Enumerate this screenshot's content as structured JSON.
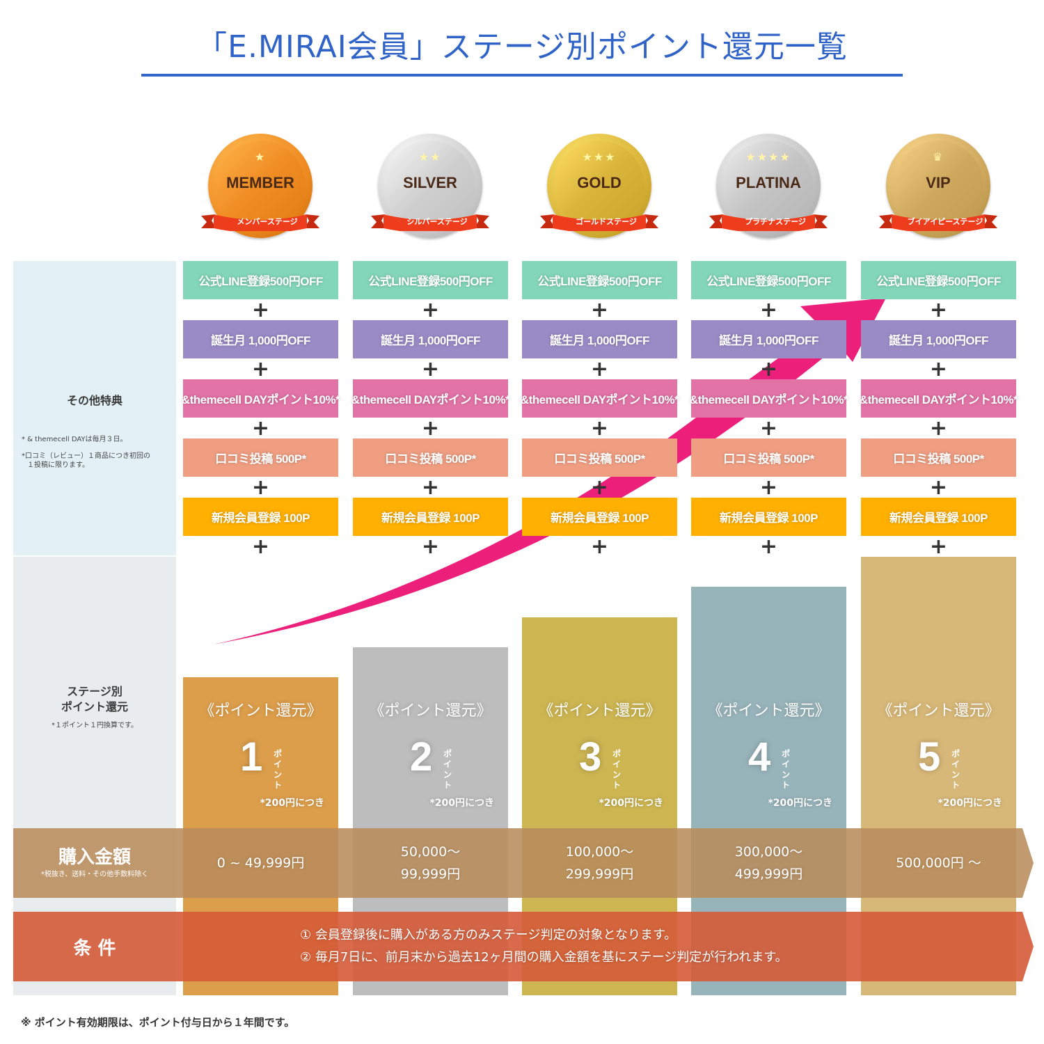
{
  "title": "「E.MIRAI会員」ステージ別ポイント還元一覧",
  "colors": {
    "title": "#2f63c7",
    "benefit_line": "#83d6b9",
    "benefit_birthday": "#9a8bc7",
    "benefit_day": "#e273a6",
    "benefit_review": "#f09e82",
    "benefit_signup": "#ffb000",
    "arrow": "#ec1f7a",
    "purchase_band": "#b88c5c",
    "condition_band": "#d55b39"
  },
  "stages": [
    {
      "name": "MEMBER",
      "ribbon": "メンバーステージ",
      "stars": "★",
      "medal_color": "#ef8c23",
      "bar_color": "#dc9e4b",
      "points": "1",
      "bar_level": 1,
      "purchase": [
        "0 ~ 49,999円"
      ]
    },
    {
      "name": "SILVER",
      "ribbon": "シルバーステージ",
      "stars": "★★",
      "medal_color": "#cfcfcf",
      "bar_color": "#bdbdbd",
      "points": "2",
      "bar_level": 2,
      "purchase": [
        "50,000～",
        "99,999円"
      ]
    },
    {
      "name": "GOLD",
      "ribbon": "ゴールドステージ",
      "stars": "★★★",
      "medal_color": "#d9b43a",
      "bar_color": "#cdb552",
      "points": "3",
      "bar_level": 3,
      "purchase": [
        "100,000～",
        "299,999円"
      ]
    },
    {
      "name": "PLATINA",
      "ribbon": "プラチナステージ",
      "stars": "★★★★",
      "medal_color": "#c4c4c4",
      "bar_color": "#98b4bb",
      "points": "4",
      "bar_level": 4,
      "purchase": [
        "300,000～",
        "499,999円"
      ]
    },
    {
      "name": "VIP",
      "ribbon": "ブイアイピーステージ",
      "stars": "♛",
      "medal_color": "#cfa95e",
      "bar_color": "#d8b878",
      "points": "5",
      "bar_level": 5,
      "purchase": [
        "500,000円 ～"
      ]
    }
  ],
  "benefits": [
    "公式LINE登録500円OFF",
    "誕生月 1,000円OFF",
    "&themecell DAYポイント10%*",
    "口コミ投稿 500P*",
    "新規会員登録 100P"
  ],
  "plus_sign": "+",
  "side": {
    "other_title": "その他特典",
    "other_notes": [
      "* & themecell DAYは毎月３日。",
      "*口コミ（レビュー）１商品につき初回の",
      "１投稿に限ります。"
    ],
    "points_title": [
      "ステージ別",
      "ポイント還元"
    ],
    "points_note": "*１ポイント１円換算です。"
  },
  "points_caption": "《ポイント還元》",
  "points_unit": "ポイント",
  "points_per": "*200円につき",
  "purchase": {
    "title": "購入金額",
    "note": "*税抜き、送料・その他手数料除く"
  },
  "conditions": {
    "title": "条 件",
    "items": [
      "① 会員登録後に購入がある方のみステージ判定の対象となります。",
      "② 毎月7日に、前月末から過去12ヶ月間の購入金額を基にステージ判定が行われます。"
    ]
  },
  "footnote": "※ ポイント有効期限は、ポイント付与日から１年間です。"
}
